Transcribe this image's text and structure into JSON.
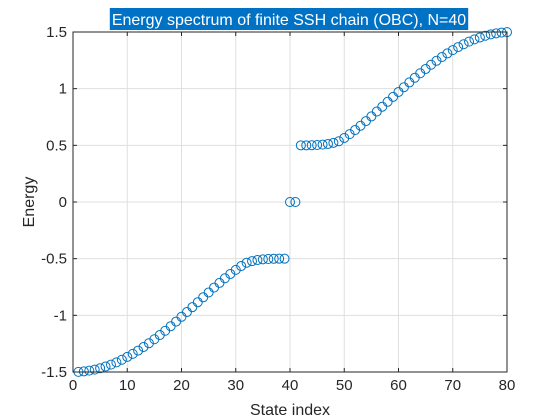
{
  "chart_data": {
    "type": "scatter",
    "title": "Energy spectrum of finite SSH chain (OBC), N=40",
    "xlabel": "State index",
    "ylabel": "Energy",
    "xlim": [
      0,
      80
    ],
    "ylim": [
      -1.5,
      1.5
    ],
    "xticks": [
      0,
      10,
      20,
      30,
      40,
      50,
      60,
      70,
      80
    ],
    "xtick_labels": [
      "0",
      "10",
      "20",
      "30",
      "40",
      "50",
      "60",
      "70",
      "80"
    ],
    "yticks": [
      -1.5,
      -1,
      -0.5,
      0,
      0.5,
      1,
      1.5
    ],
    "ytick_labels": [
      "-1.5",
      "-1",
      "-0.5",
      "0",
      "0.5",
      "1",
      "1.5"
    ],
    "grid": true,
    "marker": "open-circle",
    "colors": {
      "marker": "#0072BD",
      "title_bg": "#0072C6",
      "grid": "#DFDFDF",
      "axis": "#262626"
    },
    "series": [
      {
        "x": [
          1,
          2,
          3,
          4,
          5,
          6,
          7,
          8,
          9,
          10,
          11,
          12,
          13,
          14,
          15,
          16,
          17,
          18,
          19,
          20,
          21,
          22,
          23,
          24,
          25,
          26,
          27,
          28,
          29,
          30,
          31,
          32,
          33,
          34,
          35,
          36,
          37,
          38,
          39,
          40,
          41,
          42,
          43,
          44,
          45,
          46,
          47,
          48,
          49,
          50,
          51,
          52,
          53,
          54,
          55,
          56,
          57,
          58,
          59,
          60,
          61,
          62,
          63,
          64,
          65,
          66,
          67,
          68,
          69,
          70,
          71,
          72,
          73,
          74,
          75,
          76,
          77,
          78,
          79,
          80
        ],
        "y": [
          -1.499,
          -1.495,
          -1.488,
          -1.479,
          -1.467,
          -1.452,
          -1.435,
          -1.415,
          -1.392,
          -1.367,
          -1.34,
          -1.311,
          -1.279,
          -1.246,
          -1.211,
          -1.174,
          -1.136,
          -1.096,
          -1.055,
          -1.013,
          -0.971,
          -0.928,
          -0.884,
          -0.841,
          -0.798,
          -0.755,
          -0.714,
          -0.673,
          -0.635,
          -0.599,
          -0.565,
          -0.536,
          -0.522,
          -0.512,
          -0.506,
          -0.503,
          -0.501,
          -0.5,
          -0.5,
          0.0,
          0.0,
          0.5,
          0.5,
          0.501,
          0.503,
          0.506,
          0.512,
          0.522,
          0.536,
          0.565,
          0.599,
          0.635,
          0.673,
          0.714,
          0.755,
          0.798,
          0.841,
          0.884,
          0.928,
          0.971,
          1.013,
          1.055,
          1.096,
          1.136,
          1.174,
          1.211,
          1.246,
          1.279,
          1.311,
          1.34,
          1.367,
          1.392,
          1.415,
          1.435,
          1.452,
          1.467,
          1.479,
          1.488,
          1.495,
          1.499
        ]
      }
    ]
  }
}
